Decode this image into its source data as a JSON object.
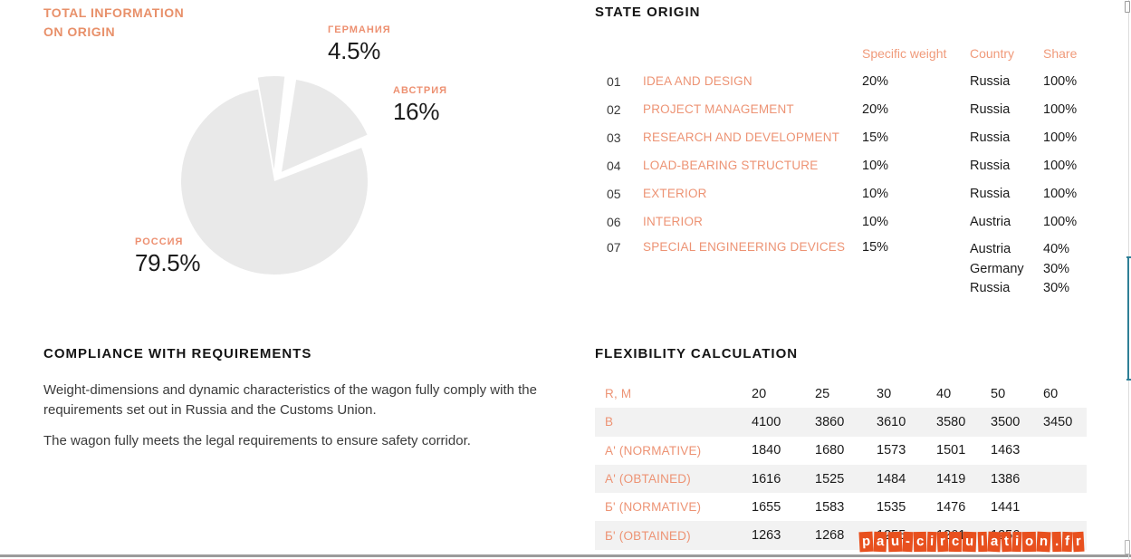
{
  "page": {
    "watermark": "pau-circulation.fr"
  },
  "origin_section": {
    "title_line1": "TOTAL INFORMATION",
    "title_line2": "ON ORIGIN",
    "slices": [
      {
        "label": "ГЕРМАНИЯ",
        "value": "4.5%"
      },
      {
        "label": "АВСТРИЯ",
        "value": "16%"
      },
      {
        "label": "РОССИЯ",
        "value": "79.5%"
      }
    ]
  },
  "chart_data": {
    "type": "pie",
    "labels": [
      "ГЕРМАНИЯ",
      "АВСТРИЯ",
      "РОССИЯ"
    ],
    "values": [
      4.5,
      16,
      79.5
    ],
    "unit": "%",
    "slice_color": "#E9E9E9",
    "exploded": [
      "ГЕРМАНИЯ",
      "АВСТРИЯ"
    ],
    "legend_position": "around-slices"
  },
  "state_origin": {
    "title": "STATE ORIGIN",
    "headers": {
      "weight": "Specific weight",
      "country": "Country",
      "share": "Share"
    },
    "rows": [
      {
        "num": "01",
        "label": "IDEA AND DESIGN",
        "weight": "20%",
        "country": "Russia",
        "share": "100%"
      },
      {
        "num": "02",
        "label": "PROJECT MANAGEMENT",
        "weight": "20%",
        "country": "Russia",
        "share": "100%"
      },
      {
        "num": "03",
        "label": "RESEARCH AND DEVELOPMENT",
        "weight": "15%",
        "country": "Russia",
        "share": "100%"
      },
      {
        "num": "04",
        "label": "LOAD-BEARING STRUCTURE",
        "weight": "10%",
        "country": "Russia",
        "share": "100%"
      },
      {
        "num": "05",
        "label": "EXTERIOR",
        "weight": "10%",
        "country": "Russia",
        "share": "100%"
      },
      {
        "num": "06",
        "label": "INTERIOR",
        "weight": "10%",
        "country": "Austria",
        "share": "100%"
      },
      {
        "num": "07",
        "label": "SPECIAL ENGINEERING DEVICES",
        "weight": "15%",
        "country": "Austria\nGermany\nRussia",
        "share": "40%\n30%\n30%"
      }
    ]
  },
  "compliance": {
    "title": "COMPLIANCE WITH REQUIREMENTS",
    "paragraph1": "Weight-dimensions and dynamic characteristics of the wagon fully comply with the requirements set out in Russia and the Customs Union.",
    "paragraph2": "The wagon fully meets the legal requirements to ensure safety corridor."
  },
  "flexibility": {
    "title": "FLEXIBILITY CALCULATION",
    "header_label": "R, M",
    "columns": [
      "20",
      "25",
      "30",
      "40",
      "50",
      "60"
    ],
    "rows": [
      {
        "label": "B",
        "values": [
          "4100",
          "3860",
          "3610",
          "3580",
          "3500",
          "3450"
        ],
        "shaded": true
      },
      {
        "label": "A' (NORMATIVE)",
        "values": [
          "1840",
          "1680",
          "1573",
          "1501",
          "1463",
          ""
        ],
        "shaded": false
      },
      {
        "label": "A' (OBTAINED)",
        "values": [
          "1616",
          "1525",
          "1484",
          "1419",
          "1386",
          ""
        ],
        "shaded": true
      },
      {
        "label": "Б' (NORMATIVE)",
        "values": [
          "1655",
          "1583",
          "1535",
          "1476",
          "1441",
          ""
        ],
        "shaded": false
      },
      {
        "label": "Б' (OBTAINED)",
        "values": [
          "1263",
          "1268",
          "1255",
          "1261",
          "1256",
          ""
        ],
        "shaded": true
      }
    ]
  },
  "colors": {
    "accent_orange": "#ED9071",
    "title_orange": "#E8906A",
    "heading_black": "#141414",
    "pie_gray": "#E9E9E9",
    "stripe_gray": "#F2F2F2",
    "watermark_red": "#E8501E",
    "scrollbar_teal": "#2E7F96",
    "bottom_bar_gray": "#9B9B9B"
  }
}
